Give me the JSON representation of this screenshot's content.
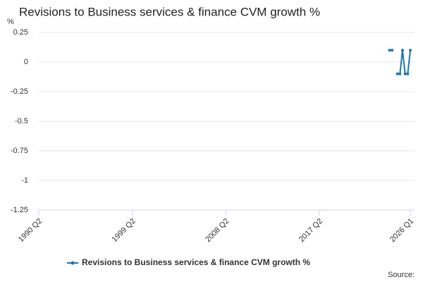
{
  "chart_data": {
    "type": "line",
    "title": "Revisions to Business services & finance CVM growth %",
    "y_label": "%",
    "source": "Source:",
    "categories": [
      "1990 Q2",
      null,
      null,
      null,
      null,
      null,
      null,
      null,
      null,
      null,
      null,
      null,
      null,
      null,
      null,
      null,
      null,
      null,
      null,
      null,
      null,
      null,
      null,
      null,
      null,
      null,
      null,
      null,
      null,
      null,
      null,
      null,
      null,
      null,
      null,
      null,
      "1999 Q2",
      null,
      null,
      null,
      null,
      null,
      null,
      null,
      null,
      null,
      null,
      null,
      null,
      null,
      null,
      null,
      null,
      null,
      null,
      null,
      null,
      null,
      null,
      null,
      null,
      null,
      null,
      null,
      null,
      null,
      null,
      null,
      null,
      null,
      null,
      null,
      "2008 Q2",
      null,
      null,
      null,
      null,
      null,
      null,
      null,
      null,
      null,
      null,
      null,
      null,
      null,
      null,
      null,
      null,
      null,
      null,
      null,
      null,
      null,
      null,
      null,
      null,
      null,
      null,
      null,
      null,
      null,
      null,
      null,
      null,
      null,
      null,
      null,
      "2017 Q2",
      null,
      null,
      null,
      null,
      null,
      null,
      null,
      null,
      null,
      null,
      null,
      null,
      null,
      null,
      null,
      null,
      null,
      null,
      null,
      null,
      null,
      null,
      null,
      null,
      null,
      null,
      null,
      null,
      null,
      null,
      null,
      null,
      null,
      null,
      "2026 Q1"
    ],
    "series": [
      {
        "name": "Revisions to Business services & finance CVM growth %",
        "color": "#1a76b0",
        "values": [
          null,
          null,
          null,
          null,
          null,
          null,
          null,
          null,
          null,
          null,
          null,
          null,
          null,
          null,
          null,
          null,
          null,
          null,
          null,
          null,
          null,
          null,
          null,
          null,
          null,
          null,
          null,
          null,
          null,
          null,
          null,
          null,
          null,
          null,
          null,
          null,
          null,
          null,
          null,
          null,
          null,
          null,
          null,
          null,
          null,
          null,
          null,
          null,
          null,
          null,
          null,
          null,
          null,
          null,
          null,
          null,
          null,
          null,
          null,
          null,
          null,
          null,
          null,
          null,
          null,
          null,
          null,
          null,
          null,
          null,
          null,
          null,
          null,
          null,
          null,
          null,
          null,
          null,
          null,
          null,
          null,
          null,
          null,
          null,
          null,
          null,
          null,
          null,
          null,
          null,
          null,
          null,
          null,
          null,
          null,
          null,
          null,
          null,
          null,
          null,
          null,
          null,
          null,
          null,
          null,
          null,
          null,
          null,
          null,
          null,
          null,
          null,
          null,
          null,
          null,
          null,
          null,
          null,
          null,
          null,
          null,
          null,
          null,
          null,
          null,
          null,
          null,
          null,
          null,
          null,
          null,
          null,
          null,
          null,
          null,
          0.1,
          0.1,
          null,
          -0.1,
          -0.1,
          0.1,
          -0.1,
          -0.1,
          0.1
        ]
      }
    ],
    "ylim": [
      -1.25,
      0.25
    ],
    "yticks": [
      0.25,
      0,
      -0.25,
      -0.5,
      -0.75,
      -1,
      -1.25
    ],
    "grid": true,
    "legend": "bottom"
  }
}
